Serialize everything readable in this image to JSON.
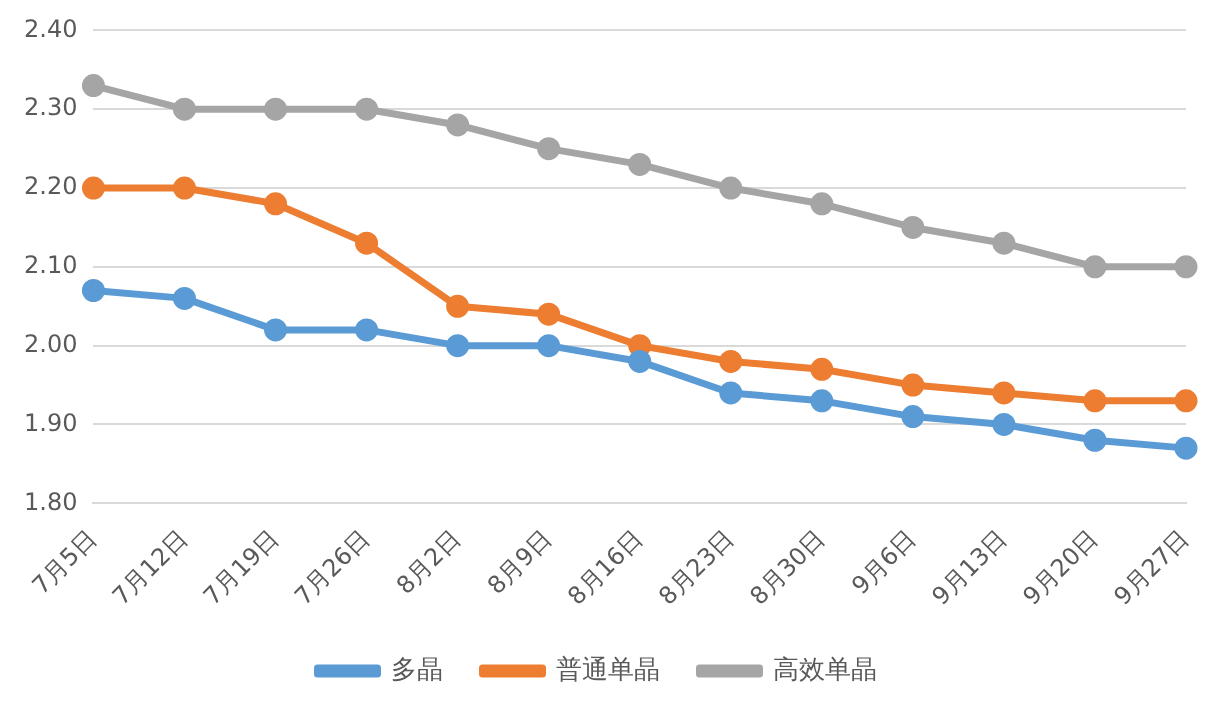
{
  "chart_data": {
    "type": "line",
    "categories": [
      "7月5日",
      "7月12日",
      "7月19日",
      "7月26日",
      "8月2日",
      "8月9日",
      "8月16日",
      "8月23日",
      "8月30日",
      "9月6日",
      "9月13日",
      "9月20日",
      "9月27日"
    ],
    "series": [
      {
        "name": "多晶",
        "color": "#5b9bd5",
        "values": [
          2.07,
          2.06,
          2.02,
          2.02,
          2.0,
          2.0,
          1.98,
          1.94,
          1.93,
          1.91,
          1.9,
          1.88,
          1.87
        ]
      },
      {
        "name": "普通单晶",
        "color": "#ed7d31",
        "values": [
          2.2,
          2.2,
          2.18,
          2.13,
          2.05,
          2.04,
          2.0,
          1.98,
          1.97,
          1.95,
          1.94,
          1.93,
          1.93
        ]
      },
      {
        "name": "高效单晶",
        "color": "#a5a5a5",
        "values": [
          2.33,
          2.3,
          2.3,
          2.3,
          2.28,
          2.25,
          2.23,
          2.2,
          2.18,
          2.15,
          2.13,
          2.1,
          2.1
        ]
      }
    ],
    "ylim": [
      1.8,
      2.4
    ],
    "yticks": [
      {
        "value": 1.8,
        "label": "1.80"
      },
      {
        "value": 1.9,
        "label": "1.90"
      },
      {
        "value": 2.0,
        "label": "2.00"
      },
      {
        "value": 2.1,
        "label": "2.10"
      },
      {
        "value": 2.2,
        "label": "2.20"
      },
      {
        "value": 2.3,
        "label": "2.30"
      },
      {
        "value": 2.4,
        "label": "2.40"
      }
    ],
    "grid": "y",
    "legend": "bottom",
    "marker": "circle",
    "line_style": "solid"
  }
}
